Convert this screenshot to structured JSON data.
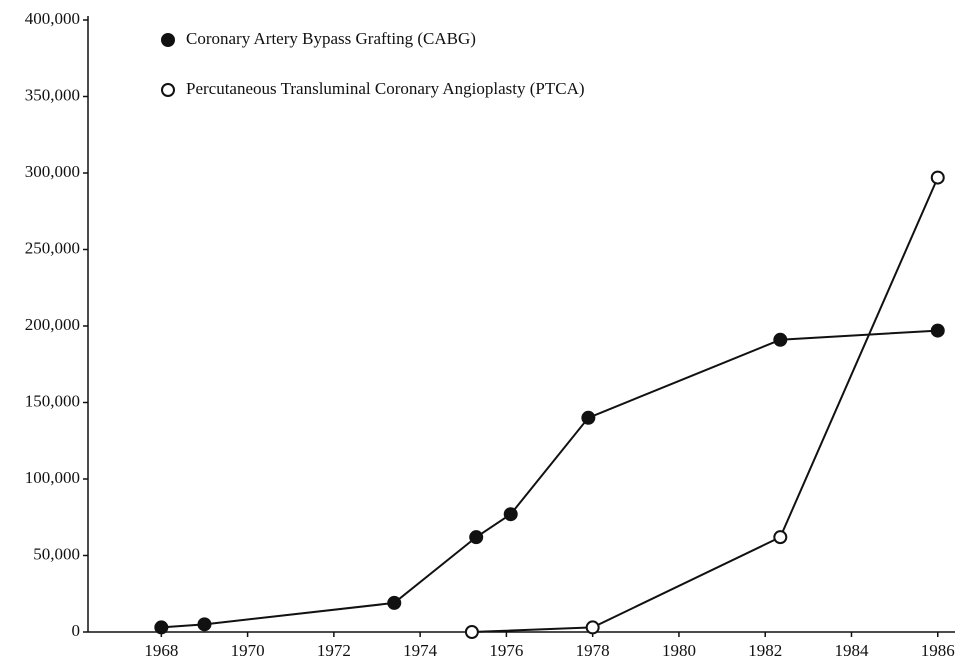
{
  "chart_data": {
    "type": "line",
    "series": [
      {
        "name": "Coronary Artery Bypass Grafting (CABG)",
        "color": "#111111",
        "marker": "filled",
        "x": [
          1968,
          1969,
          1973.4,
          1975.3,
          1976.1,
          1977.9,
          1982.35,
          1986
        ],
        "values": [
          3000,
          5000,
          19000,
          62000,
          77000,
          140000,
          191000,
          197000
        ]
      },
      {
        "name": "Percutaneous Transluminal Coronary Angioplasty (PTCA)",
        "color": "#111111",
        "marker": "open",
        "x": [
          1975.2,
          1978,
          1982.35,
          1986
        ],
        "values": [
          0,
          3000,
          62000,
          297000
        ]
      }
    ],
    "xlim": [
      1966.3,
      1986.4
    ],
    "xticks": [
      1968,
      1970,
      1972,
      1974,
      1976,
      1978,
      1980,
      1982,
      1984,
      1986
    ],
    "ylim": [
      0,
      400000
    ],
    "yticks": [
      0,
      {
        "value": 50000,
        "label": "50,000"
      },
      {
        "value": 100000,
        "label": "100,000"
      },
      {
        "value": 150000,
        "label": "150,000"
      },
      {
        "value": 200000,
        "label": "200,000"
      },
      {
        "value": 250000,
        "label": "250,000"
      },
      {
        "value": 300000,
        "label": "300,000"
      },
      {
        "value": 350000,
        "label": "350,000"
      },
      {
        "value": 400000,
        "label": "400,000"
      }
    ],
    "legend": "top-left"
  }
}
